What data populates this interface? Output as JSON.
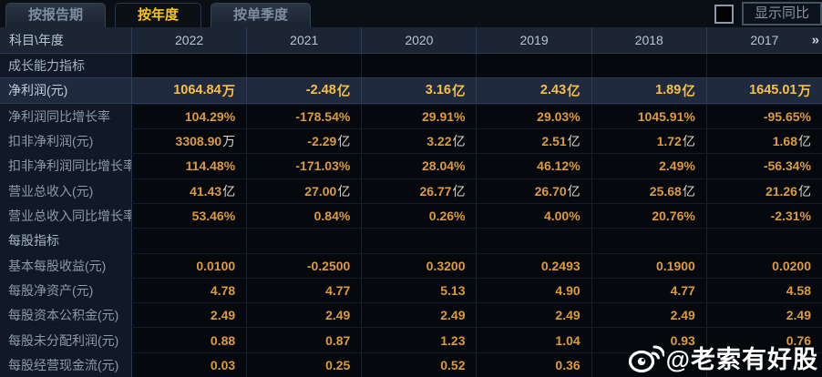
{
  "tabs": [
    {
      "label": "按报告期",
      "active": false
    },
    {
      "label": "按年度",
      "active": true
    },
    {
      "label": "按单季度",
      "active": false
    }
  ],
  "controls": {
    "show_yoy_label": "显示同比",
    "checkbox_checked": false
  },
  "table": {
    "corner_label": "科目\\年度",
    "years": [
      "2022",
      "2021",
      "2020",
      "2019",
      "2018",
      "2017"
    ],
    "more_years_glyph": "»",
    "rows": [
      {
        "type": "section",
        "label": "成长能力指标",
        "values": [
          "",
          "",
          "",
          "",
          "",
          ""
        ]
      },
      {
        "type": "data",
        "highlight": true,
        "label": "净利润(元)",
        "values": [
          "1064.84万",
          "-2.48亿",
          "3.16亿",
          "2.43亿",
          "1.89亿",
          "1645.01万"
        ]
      },
      {
        "type": "data",
        "label": "净利润同比增长率",
        "values": [
          "104.29%",
          "-178.54%",
          "29.91%",
          "29.03%",
          "1045.91%",
          "-95.65%"
        ]
      },
      {
        "type": "data",
        "label": "扣非净利润(元)",
        "values": [
          "3308.90万",
          "-2.29亿",
          "3.22亿",
          "2.51亿",
          "1.72亿",
          "1.68亿"
        ]
      },
      {
        "type": "data",
        "label": "扣非净利润同比增长率",
        "values": [
          "114.48%",
          "-171.03%",
          "28.04%",
          "46.12%",
          "2.49%",
          "-56.34%"
        ]
      },
      {
        "type": "data",
        "label": "营业总收入(元)",
        "values": [
          "41.43亿",
          "27.00亿",
          "26.77亿",
          "26.70亿",
          "25.68亿",
          "21.26亿"
        ]
      },
      {
        "type": "data",
        "label": "营业总收入同比增长率",
        "values": [
          "53.46%",
          "0.84%",
          "0.26%",
          "4.00%",
          "20.76%",
          "-2.31%"
        ]
      },
      {
        "type": "section",
        "label": "每股指标",
        "values": [
          "",
          "",
          "",
          "",
          "",
          ""
        ]
      },
      {
        "type": "data",
        "label": "基本每股收益(元)",
        "values": [
          "0.0100",
          "-0.2500",
          "0.3200",
          "0.2493",
          "0.1900",
          "0.0200"
        ]
      },
      {
        "type": "data",
        "label": "每股净资产(元)",
        "values": [
          "4.78",
          "4.77",
          "5.13",
          "4.90",
          "4.77",
          "4.58"
        ]
      },
      {
        "type": "data",
        "label": "每股资本公积金(元)",
        "values": [
          "2.49",
          "2.49",
          "2.49",
          "2.49",
          "2.49",
          "2.49"
        ]
      },
      {
        "type": "data",
        "label": "每股未分配利润(元)",
        "values": [
          "0.88",
          "0.87",
          "1.23",
          "1.04",
          "0.93",
          "0.76"
        ]
      },
      {
        "type": "data",
        "label": "每股经营现金流(元)",
        "values": [
          "0.03",
          "0.25",
          "0.52",
          "0.36",
          "",
          ""
        ]
      }
    ]
  },
  "watermark": {
    "handle": "@老索有好股"
  },
  "colors": {
    "accent_gold": "#f6c41e",
    "value_orange": "#dd9b3f",
    "highlight_value": "#f8bf49",
    "highlight_row_bg": "#1f2a3e",
    "header_bg": "#1b2534",
    "label_cell_bg": "#111926",
    "body_bg": "#05080d"
  }
}
